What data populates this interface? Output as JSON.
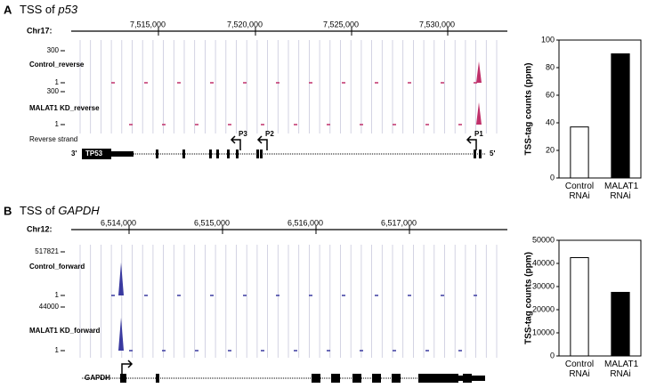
{
  "panels": [
    {
      "label": "A",
      "title_prefix": "TSS of ",
      "gene": "p53",
      "chromosome": "Chr17:",
      "coords": [
        "7,515,000",
        "7,520,000",
        "7,525,000",
        "7,530,000"
      ],
      "tracks": [
        {
          "name": "Control_reverse",
          "scale_top": "300",
          "scale_bottom": "1"
        },
        {
          "name": "MALAT1 KD_reverse",
          "scale_top": "300",
          "scale_bottom": "1"
        }
      ],
      "strand": "Reverse strand",
      "gene_label": "TP53",
      "end_left": "3'",
      "end_right": "5'",
      "promoters": [
        "P3",
        "P2",
        "P1"
      ]
    },
    {
      "label": "B",
      "title_prefix": "TSS of ",
      "gene": "GAPDH",
      "chromosome": "Chr12:",
      "coords": [
        "6,514,000",
        "6,515,000",
        "6,516,000",
        "6,517,000"
      ],
      "tracks": [
        {
          "name": "Control_forward",
          "scale_top": "517821",
          "scale_bottom": "1"
        },
        {
          "name": "MALAT1 KD_forward",
          "scale_top": "44000",
          "scale_bottom": "1"
        }
      ],
      "gene_label": "GAPDH"
    }
  ],
  "chart_data": [
    {
      "type": "bar",
      "ylabel": "TSS-tag counts (ppm)",
      "categories": [
        "Control RNAi",
        "MALAT1 RNAi"
      ],
      "values": [
        37,
        90
      ],
      "colors": [
        "#ffffff",
        "#000000"
      ],
      "ylim": [
        0,
        100
      ],
      "yticks": [
        0,
        20,
        40,
        60,
        80,
        100
      ]
    },
    {
      "type": "bar",
      "ylabel": "TSS-tag counts (ppm)",
      "categories": [
        "Control RNAi",
        "MALAT1 RNAi"
      ],
      "values": [
        42500,
        27500
      ],
      "colors": [
        "#ffffff",
        "#000000"
      ],
      "ylim": [
        0,
        50000
      ],
      "yticks": [
        0,
        10000,
        20000,
        30000,
        40000,
        50000
      ]
    }
  ]
}
